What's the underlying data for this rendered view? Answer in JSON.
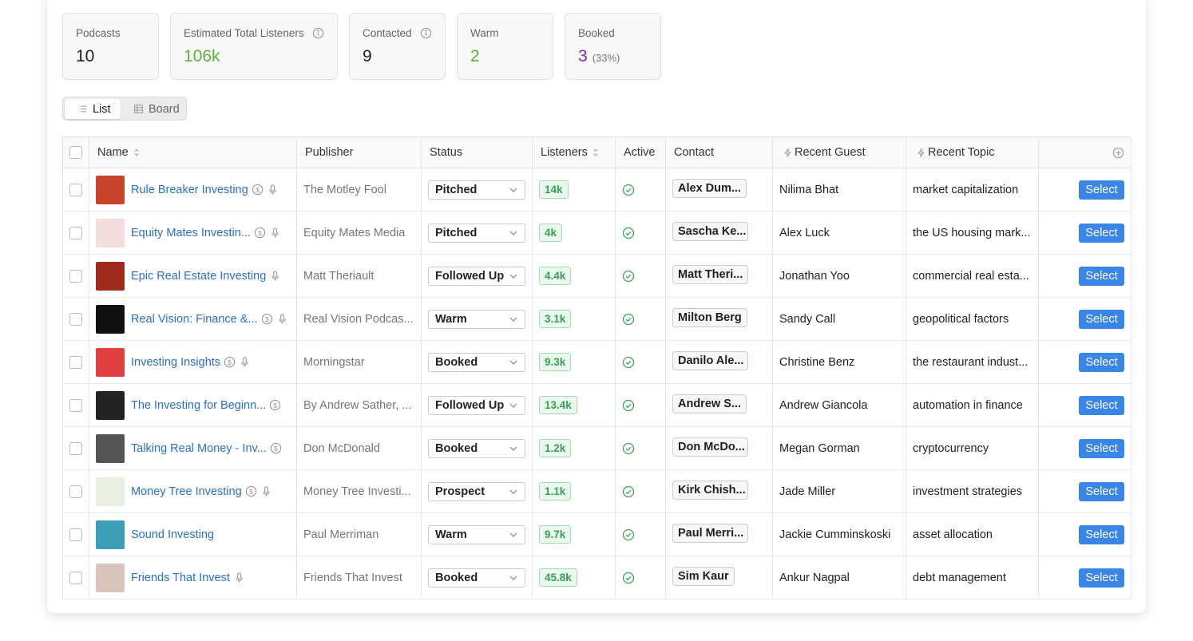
{
  "stats": [
    {
      "label": "Podcasts",
      "value": "10"
    },
    {
      "label": "Estimated Total Listeners",
      "value": "106k"
    },
    {
      "label": "Contacted",
      "value": "9"
    },
    {
      "label": "Warm",
      "value": "2"
    },
    {
      "label": "Booked",
      "value": "3",
      "note": "(33%)"
    }
  ],
  "tabs": [
    "List",
    "Board"
  ],
  "table": {
    "columns": [
      "Name",
      "Publisher",
      "Status",
      "Listeners",
      "Active",
      "Contact",
      "Recent Guest",
      "Recent Topic"
    ],
    "action": "Select",
    "rows": [
      {
        "name": "Rule Breaker Investing",
        "publisher": "The Motley Fool",
        "status": "Pitched",
        "listeners": "14k",
        "contact": "Alex Dum...",
        "guest": "Nilima Bhat",
        "topic": "market capitalization"
      },
      {
        "name": "Equity Mates Investin...",
        "publisher": "Equity Mates Media",
        "status": "Pitched",
        "listeners": "4k",
        "contact": "Sascha Ke...",
        "guest": "Alex Luck",
        "topic": "the US housing mark..."
      },
      {
        "name": "Epic Real Estate Investing",
        "publisher": "Matt Theriault",
        "status": "Followed Up",
        "listeners": "4.4k",
        "contact": "Matt Theri...",
        "guest": "Jonathan Yoo",
        "topic": "commercial real esta..."
      },
      {
        "name": "Real Vision: Finance &...",
        "publisher": "Real Vision Podcas...",
        "status": "Warm",
        "listeners": "3.1k",
        "contact": "Milton Berg",
        "guest": "Sandy Call",
        "topic": "geopolitical factors"
      },
      {
        "name": "Investing Insights",
        "publisher": "Morningstar",
        "status": "Booked",
        "listeners": "9.3k",
        "contact": "Danilo Ale...",
        "guest": "Christine Benz",
        "topic": "the restaurant indust..."
      },
      {
        "name": "The Investing for Beginn...",
        "publisher": "By Andrew Sather, ...",
        "status": "Followed Up",
        "listeners": "13.4k",
        "contact": "Andrew S...",
        "guest": "Andrew Giancola",
        "topic": "automation in finance"
      },
      {
        "name": "Talking Real Money - Inv...",
        "publisher": "Don McDonald",
        "status": "Booked",
        "listeners": "1.2k",
        "contact": "Don McDo...",
        "guest": "Megan Gorman",
        "topic": "cryptocurrency"
      },
      {
        "name": "Money Tree Investing",
        "publisher": "Money Tree Investi...",
        "status": "Prospect",
        "listeners": "1.1k",
        "contact": "Kirk Chish...",
        "guest": "Jade Miller",
        "topic": "investment strategies"
      },
      {
        "name": "Sound Investing",
        "publisher": "Paul Merriman",
        "status": "Warm",
        "listeners": "9.7k",
        "contact": "Paul Merri...",
        "guest": "Jackie Cumminskoski",
        "topic": "asset allocation"
      },
      {
        "name": "Friends That Invest",
        "publisher": "Friends That Invest",
        "status": "Booked",
        "listeners": "45.8k",
        "contact": "Sim Kaur",
        "guest": "Ankur Nagpal",
        "topic": "debt management"
      }
    ]
  }
}
